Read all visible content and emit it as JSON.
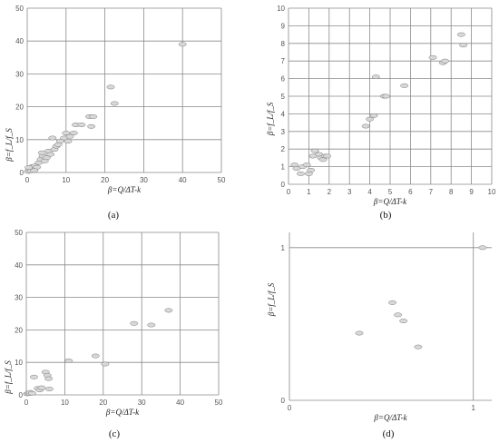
{
  "chart_data": [
    {
      "panel": "(a)",
      "type": "scatter",
      "xlabel": "β=Q/ΔT-k",
      "ylabel": "β=f_L/f_S",
      "xlim": [
        0,
        50
      ],
      "ylim": [
        0,
        50
      ],
      "xticks": [
        "0",
        "10",
        "20",
        "30",
        "40",
        "50"
      ],
      "yticks": [
        "0",
        "10",
        "20",
        "30",
        "40",
        "50"
      ],
      "grid": true,
      "points": [
        {
          "x": 0.2,
          "y": 0.3
        },
        {
          "x": 0.5,
          "y": 0.8
        },
        {
          "x": 0.8,
          "y": 1.2
        },
        {
          "x": 1.0,
          "y": 0.5
        },
        {
          "x": 1.3,
          "y": 1.8
        },
        {
          "x": 1.6,
          "y": 1.1
        },
        {
          "x": 2.0,
          "y": 2.0
        },
        {
          "x": 2.5,
          "y": 1.6
        },
        {
          "x": 0.4,
          "y": 1.5
        },
        {
          "x": 1.8,
          "y": 0.6
        },
        {
          "x": 3.0,
          "y": 3.0
        },
        {
          "x": 3.5,
          "y": 4.0
        },
        {
          "x": 4.0,
          "y": 5.0
        },
        {
          "x": 4.5,
          "y": 3.5
        },
        {
          "x": 3.8,
          "y": 6.0
        },
        {
          "x": 5.0,
          "y": 4.5
        },
        {
          "x": 5.5,
          "y": 6.5
        },
        {
          "x": 6.0,
          "y": 5.5
        },
        {
          "x": 6.5,
          "y": 10.5
        },
        {
          "x": 7.0,
          "y": 7.0
        },
        {
          "x": 7.5,
          "y": 8.0
        },
        {
          "x": 8.0,
          "y": 8.5
        },
        {
          "x": 8.5,
          "y": 9.5
        },
        {
          "x": 9.5,
          "y": 10.5
        },
        {
          "x": 10.0,
          "y": 12.0
        },
        {
          "x": 10.5,
          "y": 9.5
        },
        {
          "x": 11.0,
          "y": 11.0
        },
        {
          "x": 12.0,
          "y": 12.0
        },
        {
          "x": 12.5,
          "y": 14.5
        },
        {
          "x": 14.0,
          "y": 14.5
        },
        {
          "x": 16.0,
          "y": 17.0
        },
        {
          "x": 17.0,
          "y": 17.0
        },
        {
          "x": 16.5,
          "y": 14.0
        },
        {
          "x": 21.5,
          "y": 26.0
        },
        {
          "x": 22.5,
          "y": 21.0
        },
        {
          "x": 40.0,
          "y": 39.0
        }
      ]
    },
    {
      "panel": "(b)",
      "type": "scatter",
      "xlabel": "β=Q/ΔT-k",
      "ylabel": "β=f_L/f_S",
      "xlim": [
        0,
        10
      ],
      "ylim": [
        0,
        10
      ],
      "xticks": [
        "0",
        "1",
        "2",
        "3",
        "4",
        "5",
        "6",
        "7",
        "8",
        "9",
        "10"
      ],
      "yticks": [
        "0",
        "1",
        "2",
        "3",
        "4",
        "5",
        "6",
        "7",
        "8",
        "9",
        "10"
      ],
      "grid": true,
      "points": [
        {
          "x": 0.3,
          "y": 1.1
        },
        {
          "x": 0.4,
          "y": 0.9
        },
        {
          "x": 0.6,
          "y": 0.6
        },
        {
          "x": 0.7,
          "y": 1.0
        },
        {
          "x": 0.9,
          "y": 1.1
        },
        {
          "x": 1.0,
          "y": 0.6
        },
        {
          "x": 1.1,
          "y": 0.8
        },
        {
          "x": 1.2,
          "y": 1.6
        },
        {
          "x": 1.3,
          "y": 1.9
        },
        {
          "x": 1.5,
          "y": 1.7
        },
        {
          "x": 1.6,
          "y": 1.5
        },
        {
          "x": 1.7,
          "y": 1.4
        },
        {
          "x": 1.8,
          "y": 1.6
        },
        {
          "x": 1.9,
          "y": 1.6
        },
        {
          "x": 3.8,
          "y": 3.3
        },
        {
          "x": 4.0,
          "y": 3.7
        },
        {
          "x": 4.2,
          "y": 3.9
        },
        {
          "x": 4.3,
          "y": 6.1
        },
        {
          "x": 4.7,
          "y": 5.0
        },
        {
          "x": 4.8,
          "y": 5.0
        },
        {
          "x": 5.7,
          "y": 5.6
        },
        {
          "x": 7.1,
          "y": 7.2
        },
        {
          "x": 7.6,
          "y": 6.9
        },
        {
          "x": 7.7,
          "y": 7.0
        },
        {
          "x": 8.5,
          "y": 8.5
        },
        {
          "x": 8.6,
          "y": 7.9
        }
      ]
    },
    {
      "panel": "(c)",
      "type": "scatter",
      "xlabel": "β=Q/ΔT-k",
      "ylabel": "β=f_L/f_S",
      "xlim": [
        0,
        50
      ],
      "ylim": [
        0,
        50
      ],
      "xticks": [
        "0",
        "10",
        "20",
        "30",
        "40",
        "50"
      ],
      "yticks": [
        "0",
        "10",
        "20",
        "30",
        "40",
        "50"
      ],
      "grid": true,
      "points": [
        {
          "x": 0.2,
          "y": 0.3
        },
        {
          "x": 0.5,
          "y": 0.5
        },
        {
          "x": 0.8,
          "y": 0.4
        },
        {
          "x": 1.0,
          "y": 0.8
        },
        {
          "x": 1.5,
          "y": 0.5
        },
        {
          "x": 2.0,
          "y": 5.5
        },
        {
          "x": 3.0,
          "y": 2.0
        },
        {
          "x": 3.5,
          "y": 1.5
        },
        {
          "x": 4.0,
          "y": 2.2
        },
        {
          "x": 5.0,
          "y": 7.0
        },
        {
          "x": 5.5,
          "y": 6.0
        },
        {
          "x": 5.8,
          "y": 5.0
        },
        {
          "x": 6.0,
          "y": 1.8
        },
        {
          "x": 11.0,
          "y": 10.5
        },
        {
          "x": 18.0,
          "y": 12.0
        },
        {
          "x": 20.5,
          "y": 9.5
        },
        {
          "x": 28.0,
          "y": 22.0
        },
        {
          "x": 32.5,
          "y": 21.5
        },
        {
          "x": 37.0,
          "y": 26.0
        }
      ]
    },
    {
      "panel": "(d)",
      "type": "scatter",
      "xlabel": "β=Q/ΔT-k",
      "ylabel": "β=f_L/f_S",
      "xlim": [
        0,
        1.1
      ],
      "ylim": [
        0,
        1.1
      ],
      "xticks": [
        "0",
        "1"
      ],
      "yticks": [
        "0",
        "1"
      ],
      "grid": true,
      "points": [
        {
          "x": 0.38,
          "y": 0.44
        },
        {
          "x": 0.56,
          "y": 0.64
        },
        {
          "x": 0.59,
          "y": 0.56
        },
        {
          "x": 0.62,
          "y": 0.52
        },
        {
          "x": 0.7,
          "y": 0.35
        },
        {
          "x": 1.05,
          "y": 1.0
        }
      ]
    }
  ]
}
